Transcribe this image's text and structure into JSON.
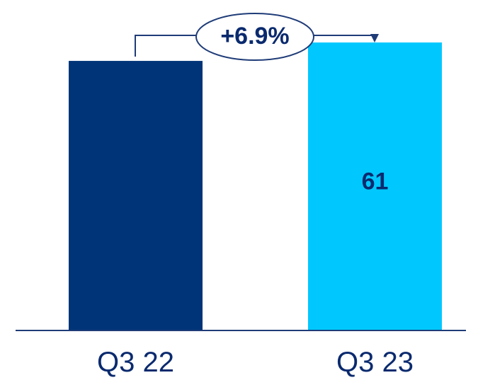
{
  "chart_data": {
    "type": "bar",
    "categories": [
      "Q3 22",
      "Q3 23"
    ],
    "values": [
      57.1,
      61
    ],
    "value_labels": [
      "",
      "61"
    ],
    "ylim": [
      0,
      70
    ],
    "grid": false,
    "colors": [
      "#003478",
      "#00c8ff"
    ],
    "text_color": "#0a2a6e",
    "axis_color": "#1f3c78",
    "change_annotation": {
      "label": "+6.9%",
      "from_category": "Q3 22",
      "to_category": "Q3 23"
    }
  }
}
